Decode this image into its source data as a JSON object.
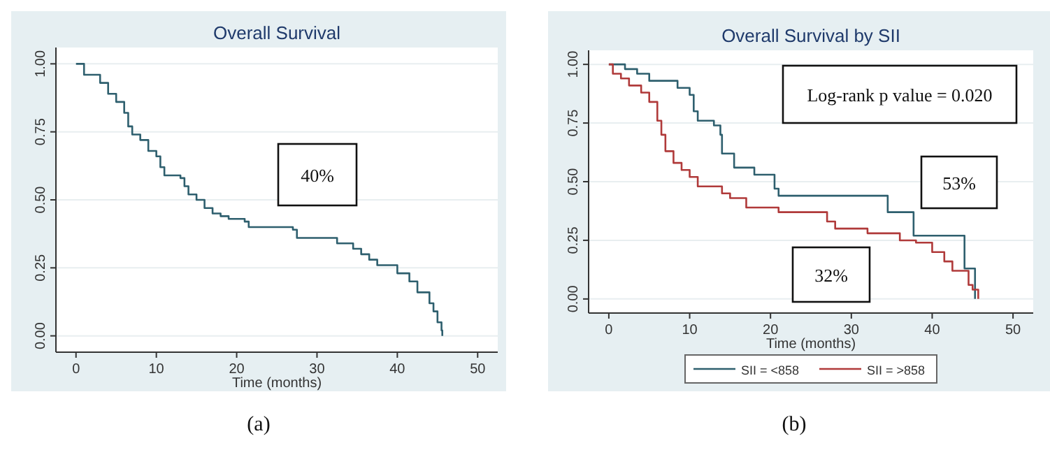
{
  "chart_data": [
    {
      "type": "step",
      "title": "Overall Survival",
      "xlabel": "Time (months)",
      "xlim": [
        -2.5,
        52.5
      ],
      "ylim": [
        -0.06,
        1.06
      ],
      "xticks": [
        0,
        10,
        20,
        30,
        40,
        50
      ],
      "yticks": [
        {
          "value": 0,
          "label": "0.00"
        },
        {
          "value": 0.25,
          "label": "0.25"
        },
        {
          "value": 0.5,
          "label": "0.50"
        },
        {
          "value": 0.75,
          "label": "0.75"
        },
        {
          "value": 1,
          "label": "1.00"
        }
      ],
      "grid": "y",
      "legend": false,
      "annotations": [
        "40%",
        "(a)"
      ],
      "series": [
        {
          "color": "#2e5f6e",
          "x": [
            0,
            1,
            3,
            4,
            5,
            6,
            6.5,
            7,
            8,
            9,
            10,
            10.5,
            11,
            13,
            13.5,
            14,
            15,
            16,
            17,
            18,
            19,
            21,
            21.5,
            27,
            27.5,
            32,
            32.5,
            34.5,
            35.5,
            36.5,
            37.5,
            39,
            40,
            41.5,
            42.5,
            44,
            44.5,
            45,
            45.5,
            45.6
          ],
          "values": [
            1,
            0.96,
            0.93,
            0.89,
            0.86,
            0.82,
            0.77,
            0.74,
            0.72,
            0.68,
            0.66,
            0.62,
            0.59,
            0.58,
            0.55,
            0.52,
            0.5,
            0.47,
            0.45,
            0.44,
            0.43,
            0.42,
            0.4,
            0.39,
            0.36,
            0.36,
            0.34,
            0.32,
            0.3,
            0.28,
            0.26,
            0.26,
            0.23,
            0.2,
            0.16,
            0.12,
            0.09,
            0.05,
            0.02,
            0
          ]
        }
      ]
    },
    {
      "type": "step",
      "title": "Overall Survival by SII",
      "xlabel": "Time (months)",
      "xlim": [
        -2.5,
        52.5
      ],
      "ylim": [
        -0.06,
        1.06
      ],
      "xticks": [
        0,
        10,
        20,
        30,
        40,
        50
      ],
      "yticks": [
        {
          "value": 0,
          "label": "0.00"
        },
        {
          "value": 0.25,
          "label": "0.25"
        },
        {
          "value": 0.5,
          "label": "0.50"
        },
        {
          "value": 0.75,
          "label": "0.75"
        },
        {
          "value": 1,
          "label": "1.00"
        }
      ],
      "grid": "y",
      "legend": "bottom",
      "annotations": [
        "Log-rank p value = 0.020",
        "53%",
        "32%",
        "(b)"
      ],
      "series": [
        {
          "name": "SII = <858",
          "color": "#2e5f6e",
          "x": [
            0,
            2,
            3.5,
            5,
            8.5,
            10,
            10.5,
            11,
            13,
            13.8,
            14,
            15.5,
            18,
            20.5,
            21,
            34.5,
            37.7,
            44,
            45.3
          ],
          "values": [
            1,
            0.98,
            0.96,
            0.93,
            0.9,
            0.87,
            0.8,
            0.76,
            0.74,
            0.7,
            0.62,
            0.56,
            0.53,
            0.47,
            0.44,
            0.37,
            0.27,
            0.13,
            0
          ]
        },
        {
          "name": "SII = >858",
          "color": "#b03a3a",
          "x": [
            0,
            0.5,
            1.5,
            2.5,
            4,
            5,
            6,
            6.5,
            7,
            8,
            9,
            10,
            11,
            14,
            15,
            17,
            21,
            27,
            28,
            32,
            36,
            38,
            40,
            41.5,
            42.5,
            44.5,
            45,
            45.7
          ],
          "values": [
            1,
            0.96,
            0.94,
            0.91,
            0.88,
            0.84,
            0.76,
            0.7,
            0.63,
            0.58,
            0.55,
            0.52,
            0.48,
            0.45,
            0.43,
            0.39,
            0.37,
            0.33,
            0.3,
            0.28,
            0.25,
            0.24,
            0.2,
            0.16,
            0.12,
            0.06,
            0.04,
            0
          ]
        }
      ]
    }
  ]
}
